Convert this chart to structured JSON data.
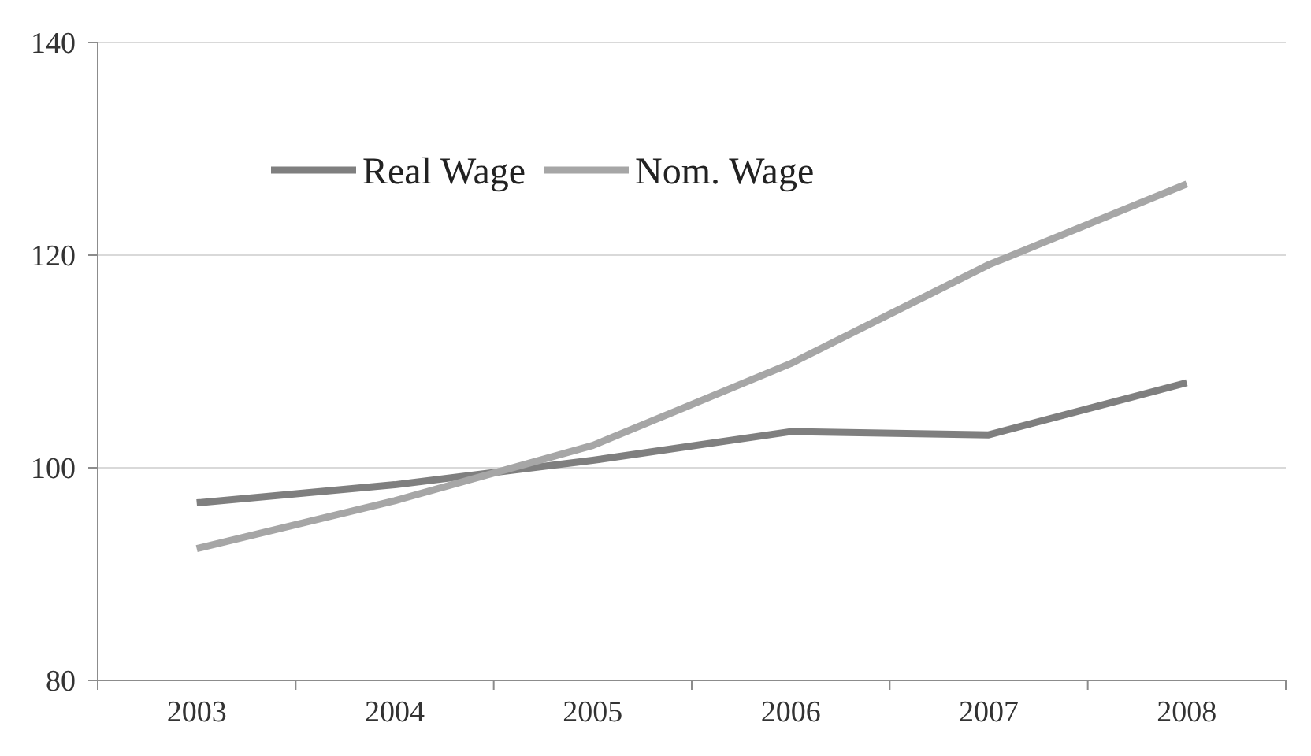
{
  "chart_data": {
    "type": "line",
    "categories": [
      "2003",
      "2004",
      "2005",
      "2006",
      "2007",
      "2008"
    ],
    "series": [
      {
        "name": "Real Wage",
        "color": "#7f7f7f",
        "values": [
          96.7,
          98.4,
          100.7,
          103.4,
          103.1,
          108.0
        ]
      },
      {
        "name": "Nom. Wage",
        "color": "#a6a6a6",
        "values": [
          92.4,
          96.9,
          102.1,
          109.8,
          119.1,
          126.7
        ]
      }
    ],
    "ylim": [
      80,
      140
    ],
    "yticks": [
      80,
      100,
      120,
      140
    ],
    "grid": "y",
    "legend": "top left",
    "marker": "none",
    "line_style": "solid"
  }
}
